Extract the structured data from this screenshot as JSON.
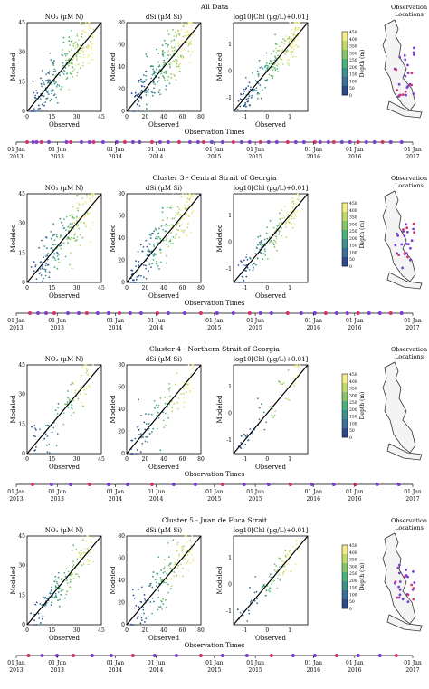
{
  "colors": {
    "scatter_low": "#2c4a8c",
    "scatter_mid": "#4bb07c",
    "scatter_high": "#f4ea8e",
    "line": "#000000",
    "timeline_dot_a": "#7a3fd0",
    "timeline_dot_b": "#d6336c",
    "map_dot": "#7a3fd0"
  },
  "ylabel_model": "Modeled",
  "xlabel_obs": "Observed",
  "timeline_title": "Observation Times",
  "timeline_ticks": [
    {
      "top": "01 Jan",
      "bottom": "2013"
    },
    {
      "top": "01 Jun",
      "bottom": "2013"
    },
    {
      "top": "01 Jan",
      "bottom": "2014"
    },
    {
      "top": "01 Jun",
      "bottom": "2014"
    },
    {
      "top": "01 Jan",
      "bottom": "2015"
    },
    {
      "top": "01 Jun",
      "bottom": "2015"
    },
    {
      "top": "01 Jan",
      "bottom": "2016"
    },
    {
      "top": "01 Jun",
      "bottom": "2016"
    },
    {
      "top": "01 Jan",
      "bottom": "2017"
    }
  ],
  "colorbar": {
    "label": "Depth (m)",
    "ticks": [
      "450",
      "400",
      "350",
      "300",
      "250",
      "200",
      "150",
      "100",
      "50",
      "0"
    ]
  },
  "map_title": [
    "Observation",
    "Locations"
  ],
  "chart_data": [
    {
      "type": "scatter",
      "title": "All Data",
      "map_colored": true,
      "timeline_dates": [
        40,
        62,
        75,
        92,
        120,
        185,
        200,
        240,
        270,
        285,
        320,
        370,
        400,
        430,
        455,
        500,
        530,
        560,
        600,
        640,
        670,
        690,
        720,
        760,
        800,
        830,
        860,
        900,
        930,
        960,
        1000,
        1030,
        1060,
        1100,
        1120,
        1150,
        1170,
        1200,
        1230,
        1260,
        1290,
        1320,
        1350,
        1380,
        1420
      ],
      "panels": [
        {
          "title": "NO$_3$ (µM N)",
          "display": "NO₃ (µM N)",
          "xlim": [
            0,
            45
          ],
          "ylim": [
            0,
            45
          ],
          "ticks": [
            "0",
            "15",
            "30",
            "45"
          ],
          "n": 240,
          "spread": 0.22
        },
        {
          "title": "dSi (µM Si)",
          "display": "dSi (µM Si)",
          "xlim": [
            0,
            80
          ],
          "ylim": [
            0,
            80
          ],
          "ticks": [
            "0",
            "20",
            "40",
            "60",
            "80"
          ],
          "n": 240,
          "spread": 0.24
        },
        {
          "title": "log10[Chl (µg/L)+0.01]",
          "display": "log10[Chl (µg/L)+0.01]",
          "xlim": [
            -1.5,
            1.8
          ],
          "ylim": [
            -1.5,
            1.8
          ],
          "ticks": [
            "-1",
            "0",
            "1"
          ],
          "n": 200,
          "spread": 0.18
        }
      ]
    },
    {
      "type": "scatter",
      "title": "Cluster 3 - Central Strait of Georgia",
      "map_colored": true,
      "timeline_dates": [
        50,
        80,
        110,
        140,
        190,
        230,
        260,
        300,
        340,
        380,
        420,
        460,
        520,
        560,
        620,
        680,
        740,
        800,
        860,
        900,
        940,
        1000,
        1050,
        1100,
        1140,
        1180,
        1220,
        1260,
        1300,
        1340,
        1380,
        1420
      ],
      "panels": [
        {
          "title": "NO3 (µM N)",
          "display": "NO₃ (µM N)",
          "xlim": [
            0,
            45
          ],
          "ylim": [
            0,
            45
          ],
          "ticks": [
            "0",
            "15",
            "30",
            "45"
          ],
          "n": 200,
          "spread": 0.22
        },
        {
          "title": "dSi (µM Si)",
          "display": "dSi (µM Si)",
          "xlim": [
            0,
            80
          ],
          "ylim": [
            0,
            80
          ],
          "ticks": [
            "0",
            "20",
            "40",
            "60",
            "80"
          ],
          "n": 200,
          "spread": 0.24
        },
        {
          "title": "log10[Chl (µg/L)+0.01]",
          "display": "log10[Chl (µg/L)+0.01]",
          "xlim": [
            -1.5,
            1.8
          ],
          "ylim": [
            -1.5,
            1.8
          ],
          "ticks": [
            "-1",
            "0",
            "1"
          ],
          "n": 150,
          "spread": 0.16
        }
      ]
    },
    {
      "type": "scatter",
      "title": "Cluster 4 - Northern Strait of Georgia",
      "map_colored": false,
      "timeline_dates": [
        60,
        130,
        200,
        270,
        340,
        410,
        500,
        580,
        660,
        760,
        840,
        930,
        1010,
        1090,
        1170,
        1250,
        1330,
        1410
      ],
      "panels": [
        {
          "title": "NO3 (µM N)",
          "display": "NO₃ (µM N)",
          "xlim": [
            0,
            45
          ],
          "ylim": [
            0,
            45
          ],
          "ticks": [
            "0",
            "15",
            "30",
            "45"
          ],
          "n": 90,
          "spread": 0.2
        },
        {
          "title": "dSi (µM Si)",
          "display": "dSi (µM Si)",
          "xlim": [
            0,
            80
          ],
          "ylim": [
            0,
            80
          ],
          "ticks": [
            "0",
            "20",
            "40",
            "60",
            "80"
          ],
          "n": 110,
          "spread": 0.22
        },
        {
          "title": "log10[Chl (µg/L)+0.01]",
          "display": "log10[Chl (µg/L)+0.01]",
          "xlim": [
            -1.5,
            1.8
          ],
          "ylim": [
            -1.5,
            1.8
          ],
          "ticks": [
            "-1",
            "0",
            "1"
          ],
          "n": 60,
          "spread": 0.18
        }
      ]
    },
    {
      "type": "scatter",
      "title": "Cluster 5 - Juan de Fuca Strait",
      "map_colored": true,
      "timeline_dates": [
        45,
        95,
        150,
        210,
        280,
        350,
        430,
        510,
        590,
        680,
        760,
        850,
        940,
        1020,
        1100,
        1180,
        1260,
        1340,
        1400
      ],
      "panels": [
        {
          "title": "NO3 (µM N)",
          "display": "NO₃ (µM N)",
          "xlim": [
            0,
            45
          ],
          "ylim": [
            0,
            45
          ],
          "ticks": [
            "0",
            "15",
            "30",
            "45"
          ],
          "n": 140,
          "spread": 0.18
        },
        {
          "title": "dSi (µM Si)",
          "display": "dSi (µM Si)",
          "xlim": [
            0,
            80
          ],
          "ylim": [
            0,
            80
          ],
          "ticks": [
            "0",
            "20",
            "40",
            "60",
            "80"
          ],
          "n": 140,
          "spread": 0.22
        },
        {
          "title": "log10[Chl (µg/L)+0.01]",
          "display": "log10[Chl (µg/L)+0.01]",
          "xlim": [
            -1.5,
            1.8
          ],
          "ylim": [
            -1.5,
            1.8
          ],
          "ticks": [
            "-1",
            "0",
            "1"
          ],
          "n": 80,
          "spread": 0.16
        }
      ]
    }
  ]
}
